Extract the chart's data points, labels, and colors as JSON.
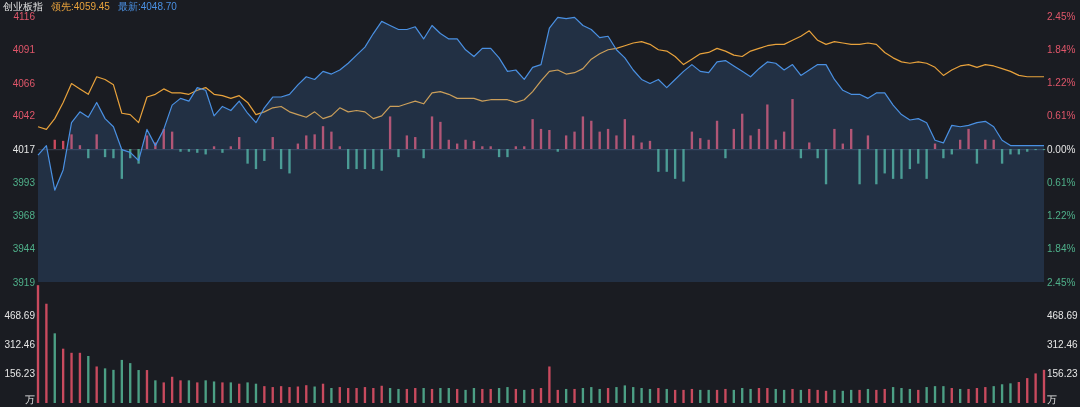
{
  "chart_data": [
    {
      "type": "line",
      "title": "创业板指",
      "legend": "top left",
      "categories": [
        null,
        null,
        null,
        null,
        null,
        null,
        null,
        null,
        null,
        null,
        null,
        null,
        null,
        null,
        null,
        null,
        null,
        null,
        null,
        null,
        null,
        null,
        null,
        null,
        null,
        null,
        null,
        null,
        null,
        null,
        null,
        null,
        null,
        null,
        null,
        null,
        null,
        null,
        null,
        null,
        null,
        null,
        null,
        null,
        null,
        null,
        null,
        null,
        null,
        null,
        null,
        null,
        null,
        null,
        null,
        null,
        null,
        null,
        null,
        null,
        null,
        null,
        null,
        null,
        null,
        null,
        null,
        null,
        null,
        null,
        null,
        null,
        null,
        null,
        null,
        null,
        null,
        null,
        null,
        null,
        null,
        null,
        null,
        null,
        null,
        null,
        null,
        null,
        null,
        null,
        null,
        null,
        null,
        null,
        null,
        null,
        null,
        null,
        null,
        null,
        null,
        null,
        null,
        null,
        null,
        null,
        null,
        null,
        null,
        null,
        null,
        null,
        null,
        null,
        null,
        null,
        null,
        null,
        null,
        null,
        null
      ],
      "ylim": [
        3919,
        4116
      ],
      "yticks": [
        3919,
        3944,
        3968,
        3993,
        4017,
        4042,
        4066,
        4091,
        4116
      ],
      "y2lim": [
        -2.45,
        2.45
      ],
      "y2ticks": [
        {
          "value": -2.45,
          "label": "2.45%"
        },
        {
          "value": -1.84,
          "label": "1.84%"
        },
        {
          "value": -1.22,
          "label": "1.22%"
        },
        {
          "value": -0.61,
          "label": "0.61%"
        },
        {
          "value": 0,
          "label": "0.00%"
        },
        {
          "value": 0.61,
          "label": "0.61%"
        },
        {
          "value": 1.22,
          "label": "1.22%"
        },
        {
          "value": 1.84,
          "label": "1.84%"
        },
        {
          "value": 2.45,
          "label": "2.45%"
        }
      ],
      "ref_lines": [
        {
          "axis": "y",
          "value": 4017,
          "color": "#3a4150"
        }
      ],
      "series": [
        {
          "type": "bar",
          "axis": "y2",
          "values": [
            null,
            null,
            0.17,
            0.15,
            0.27,
            0.07,
            -0.17,
            0.27,
            -0.15,
            -0.17,
            -0.55,
            -0.17,
            -0.27,
            0.25,
            0.12,
            0.37,
            0.32,
            -0.05,
            -0.05,
            -0.07,
            -0.1,
            0.05,
            -0.07,
            0.05,
            0.22,
            -0.27,
            -0.37,
            -0.22,
            0.22,
            -0.37,
            -0.45,
            0.1,
            0.25,
            0.27,
            0.42,
            0.32,
            0.05,
            -0.37,
            -0.37,
            -0.37,
            -0.37,
            -0.4,
            0.6,
            -0.15,
            0.25,
            0.22,
            -0.17,
            0.6,
            0.5,
            0.17,
            0.1,
            0.17,
            0.15,
            0.05,
            0.05,
            -0.15,
            -0.15,
            0.05,
            0.05,
            0.55,
            0.37,
            0.35,
            -0.05,
            0.25,
            0.32,
            0.6,
            0.52,
            0.32,
            0.37,
            0.25,
            0.55,
            0.25,
            0.12,
            0.15,
            -0.42,
            -0.42,
            -0.55,
            -0.6,
            0.32,
            0.2,
            0.17,
            0.52,
            -0.17,
            0.37,
            0.65,
            0.25,
            0.37,
            0.82,
            0.17,
            0.32,
            0.92,
            -0.17,
            0.12,
            -0.17,
            -0.65,
            0.37,
            0.1,
            0.37,
            -0.65,
            0.25,
            -0.65,
            -0.45,
            -0.55,
            -0.55,
            -0.37,
            -0.27,
            -0.55,
            0.1,
            -0.17,
            -0.1,
            0.17,
            0.37,
            -0.27,
            0.17,
            0.17,
            -0.27,
            -0.1,
            -0.1,
            -0.05,
            -0.02,
            -0.02
          ],
          "colors": [
            null,
            null,
            "#c94a5e",
            "#c94a5e",
            "#c94a5e",
            "#c94a5e",
            "#4c9f84",
            "#c94a5e",
            "#4c9f84",
            "#4c9f84",
            "#4c9f84",
            "#4c9f84",
            "#4c9f84",
            "#c94a5e",
            "#c94a5e",
            "#c94a5e",
            "#c94a5e",
            "#4c9f84",
            "#4c9f84",
            "#4c9f84",
            "#4c9f84",
            "#c94a5e",
            "#4c9f84",
            "#c94a5e",
            "#c94a5e",
            "#4c9f84",
            "#4c9f84",
            "#4c9f84",
            "#c94a5e",
            "#4c9f84",
            "#4c9f84",
            "#c94a5e",
            "#c94a5e",
            "#c94a5e",
            "#c94a5e",
            "#c94a5e",
            "#c94a5e",
            "#4c9f84",
            "#4c9f84",
            "#4c9f84",
            "#4c9f84",
            "#4c9f84",
            "#c94a5e",
            "#4c9f84",
            "#c94a5e",
            "#c94a5e",
            "#4c9f84",
            "#c94a5e",
            "#c94a5e",
            "#c94a5e",
            "#c94a5e",
            "#c94a5e",
            "#c94a5e",
            "#c94a5e",
            "#c94a5e",
            "#4c9f84",
            "#4c9f84",
            "#c94a5e",
            "#c94a5e",
            "#c94a5e",
            "#c94a5e",
            "#c94a5e",
            "#4c9f84",
            "#c94a5e",
            "#c94a5e",
            "#c94a5e",
            "#c94a5e",
            "#c94a5e",
            "#c94a5e",
            "#c94a5e",
            "#c94a5e",
            "#c94a5e",
            "#c94a5e",
            "#c94a5e",
            "#4c9f84",
            "#4c9f84",
            "#4c9f84",
            "#4c9f84",
            "#c94a5e",
            "#c94a5e",
            "#c94a5e",
            "#c94a5e",
            "#4c9f84",
            "#c94a5e",
            "#c94a5e",
            "#c94a5e",
            "#c94a5e",
            "#c94a5e",
            "#c94a5e",
            "#c94a5e",
            "#c94a5e",
            "#4c9f84",
            "#c94a5e",
            "#4c9f84",
            "#4c9f84",
            "#c94a5e",
            "#c94a5e",
            "#c94a5e",
            "#4c9f84",
            "#c94a5e",
            "#4c9f84",
            "#4c9f84",
            "#4c9f84",
            "#4c9f84",
            "#4c9f84",
            "#4c9f84",
            "#4c9f84",
            "#c94a5e",
            "#4c9f84",
            "#4c9f84",
            "#c94a5e",
            "#c94a5e",
            "#4c9f84",
            "#c94a5e",
            "#c94a5e",
            "#4c9f84",
            "#4c9f84",
            "#4c9f84",
            "#4c9f84",
            "#4c9f84",
            "#4c9f84"
          ]
        },
        {
          "name": "领先:4059.45",
          "color": "#e8a23c",
          "values": [
            4034,
            4032,
            4040,
            4052,
            4066,
            4062,
            4058,
            4071,
            4069,
            4065,
            4044,
            4043,
            4037,
            4056,
            4058,
            4062,
            4059,
            4059,
            4058,
            4061,
            4063,
            4058,
            4057,
            4055,
            4057,
            4052,
            4043,
            4045,
            4048,
            4049,
            4045,
            4043,
            4041,
            4045,
            4040,
            4042,
            4048,
            4045,
            4046,
            4045,
            4040,
            4042,
            4049,
            4049,
            4051,
            4053,
            4051,
            4059,
            4060,
            4058,
            4055,
            4055,
            4055,
            4053,
            4054,
            4054,
            4054,
            4052,
            4054,
            4060,
            4068,
            4075,
            4076,
            4073,
            4074,
            4077,
            4084,
            4088,
            4091,
            4092,
            4094,
            4096,
            4097,
            4095,
            4091,
            4090,
            4086,
            4080,
            4084,
            4088,
            4089,
            4092,
            4090,
            4087,
            4086,
            4090,
            4092,
            4094,
            4095,
            4095,
            4098,
            4101,
            4105,
            4098,
            4095,
            4097,
            4096,
            4095,
            4095,
            4096,
            4095,
            4089,
            4085,
            4082,
            4081,
            4082,
            4081,
            4078,
            4072,
            4076,
            4079,
            4080,
            4078,
            4080,
            4079,
            4077,
            4075,
            4072,
            4071,
            4071,
            4071
          ]
        },
        {
          "type": "area",
          "name": "最新:4048.70",
          "color": "#4a90e2",
          "values": [
            4013,
            4020,
            3987,
            4002,
            4037,
            4045,
            4041,
            4052,
            4040,
            4034,
            4017,
            4015,
            4009,
            4032,
            4020,
            4032,
            4050,
            4055,
            4053,
            4063,
            4061,
            4042,
            4049,
            4046,
            4053,
            4044,
            4037,
            4048,
            4056,
            4056,
            4058,
            4065,
            4071,
            4069,
            4075,
            4073,
            4076,
            4081,
            4087,
            4093,
            4103,
            4112,
            4109,
            4106,
            4106,
            4108,
            4099,
            4109,
            4103,
            4099,
            4099,
            4091,
            4086,
            4092,
            4092,
            4085,
            4075,
            4076,
            4069,
            4078,
            4080,
            4107,
            4115,
            4114,
            4115,
            4109,
            4106,
            4100,
            4101,
            4091,
            4085,
            4076,
            4069,
            4066,
            4069,
            4063,
            4069,
            4075,
            4080,
            4075,
            4074,
            4082,
            4083,
            4079,
            4075,
            4071,
            4077,
            4082,
            4081,
            4076,
            4080,
            4072,
            4076,
            4080,
            4080,
            4069,
            4061,
            4058,
            4058,
            4055,
            4059,
            4059,
            4050,
            4043,
            4039,
            4040,
            4037,
            4024,
            4022,
            4035,
            4034,
            4035,
            4037,
            4038,
            4034,
            4024,
            4020,
            4020,
            4020,
            4020,
            4020
          ]
        }
      ]
    },
    {
      "type": "bar",
      "ylabel": "万",
      "y2label": "万",
      "categories": [
        null,
        null,
        null,
        null,
        null,
        null,
        null,
        null,
        null,
        null,
        null,
        null,
        null,
        null,
        null,
        null,
        null,
        null,
        null,
        null,
        null,
        null,
        null,
        null,
        null,
        null,
        null,
        null,
        null,
        null,
        null,
        null,
        null,
        null,
        null,
        null,
        null,
        null,
        null,
        null,
        null,
        null,
        null,
        null,
        null,
        null,
        null,
        null,
        null,
        null,
        null,
        null,
        null,
        null,
        null,
        null,
        null,
        null,
        null,
        null,
        null,
        null,
        null,
        null,
        null,
        null,
        null,
        null,
        null,
        null,
        null,
        null,
        null,
        null,
        null,
        null,
        null,
        null,
        null,
        null,
        null,
        null,
        null,
        null,
        null,
        null,
        null,
        null,
        null,
        null,
        null,
        null,
        null,
        null,
        null,
        null,
        null,
        null,
        null,
        null,
        null,
        null,
        null,
        null,
        null,
        null,
        null,
        null,
        null,
        null,
        null,
        null,
        null,
        null,
        null,
        null,
        null,
        null,
        null,
        null,
        null
      ],
      "ylim": [
        0,
        630
      ],
      "yticks": [
        156.23,
        312.46,
        468.69
      ],
      "y2lim": [
        0,
        630
      ],
      "y2ticks": [
        156.23,
        312.46,
        468.69
      ],
      "values": [
        629,
        530,
        372,
        290,
        268,
        268,
        251,
        195,
        185,
        177,
        230,
        213,
        176,
        176,
        121,
        110,
        140,
        121,
        121,
        110,
        121,
        115,
        110,
        110,
        103,
        110,
        103,
        90,
        85,
        90,
        85,
        88,
        95,
        88,
        103,
        80,
        85,
        80,
        80,
        85,
        80,
        92,
        80,
        75,
        75,
        80,
        80,
        75,
        80,
        80,
        75,
        70,
        80,
        75,
        75,
        80,
        85,
        75,
        70,
        75,
        80,
        195,
        70,
        75,
        75,
        80,
        85,
        75,
        80,
        85,
        94,
        85,
        80,
        75,
        80,
        75,
        70,
        70,
        75,
        70,
        70,
        70,
        75,
        70,
        80,
        75,
        80,
        80,
        75,
        70,
        75,
        70,
        75,
        70,
        65,
        70,
        65,
        70,
        70,
        75,
        70,
        75,
        85,
        80,
        75,
        70,
        85,
        90,
        90,
        80,
        75,
        75,
        80,
        85,
        90,
        100,
        105,
        112,
        133,
        158,
        177
      ],
      "colors": [
        "#c94a5e",
        "#c94a5e",
        "#4c9f84",
        "#c94a5e",
        "#c94a5e",
        "#c94a5e",
        "#4c9f84",
        "#c94a5e",
        "#4c9f84",
        "#4c9f84",
        "#4c9f84",
        "#4c9f84",
        "#4c9f84",
        "#c94a5e",
        "#4c9f84",
        "#c94a5e",
        "#c94a5e",
        "#c94a5e",
        "#4c9f84",
        "#c94a5e",
        "#4c9f84",
        "#4c9f84",
        "#c94a5e",
        "#4c9f84",
        "#c94a5e",
        "#4c9f84",
        "#4c9f84",
        "#c94a5e",
        "#c94a5e",
        "#c94a5e",
        "#c94a5e",
        "#c94a5e",
        "#c94a5e",
        "#4c9f84",
        "#c94a5e",
        "#4c9f84",
        "#c94a5e",
        "#c94a5e",
        "#c94a5e",
        "#c94a5e",
        "#c94a5e",
        "#c94a5e",
        "#4c9f84",
        "#4c9f84",
        "#c94a5e",
        "#c94a5e",
        "#4c9f84",
        "#c94a5e",
        "#4c9f84",
        "#4c9f84",
        "#c94a5e",
        "#4c9f84",
        "#4c9f84",
        "#c94a5e",
        "#c94a5e",
        "#4c9f84",
        "#4c9f84",
        "#c94a5e",
        "#4c9f84",
        "#c94a5e",
        "#c94a5e",
        "#c94a5e",
        "#c94a5e",
        "#4c9f84",
        "#c94a5e",
        "#4c9f84",
        "#4c9f84",
        "#4c9f84",
        "#c94a5e",
        "#4c9f84",
        "#4c9f84",
        "#4c9f84",
        "#4c9f84",
        "#4c9f84",
        "#c94a5e",
        "#4c9f84",
        "#c94a5e",
        "#c94a5e",
        "#c94a5e",
        "#4c9f84",
        "#4c9f84",
        "#c94a5e",
        "#c94a5e",
        "#4c9f84",
        "#4c9f84",
        "#4c9f84",
        "#c94a5e",
        "#c94a5e",
        "#4c9f84",
        "#4c9f84",
        "#c94a5e",
        "#4c9f84",
        "#c94a5e",
        "#c94a5e",
        "#c94a5e",
        "#4c9f84",
        "#4c9f84",
        "#4c9f84",
        "#c94a5e",
        "#4c9f84",
        "#c94a5e",
        "#c94a5e",
        "#4c9f84",
        "#4c9f84",
        "#4c9f84",
        "#c94a5e",
        "#4c9f84",
        "#4c9f84",
        "#4c9f84",
        "#c94a5e",
        "#4c9f84",
        "#c94a5e",
        "#c94a5e",
        "#c94a5e",
        "#4c9f84",
        "#4c9f84",
        "#4c9f84",
        "#c94a5e",
        "#c94a5e",
        "#c94a5e",
        "#c94a5e"
      ]
    }
  ]
}
